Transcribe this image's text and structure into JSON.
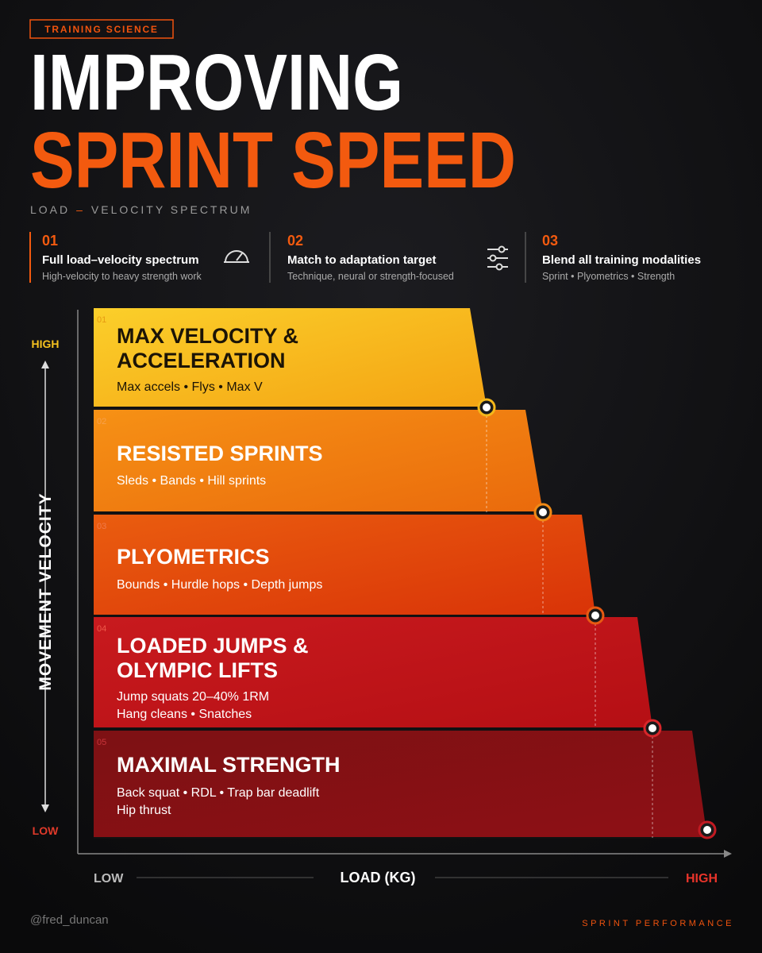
{
  "header": {
    "tag": "TRAINING SCIENCE",
    "title_line1": "IMPROVING",
    "title_line2": "SPRINT SPEED",
    "subtitle_left": "LOAD",
    "subtitle_dash": "–",
    "subtitle_right": "VELOCITY SPECTRUM"
  },
  "pillars": [
    {
      "number": "01",
      "title": "Full load–velocity spectrum",
      "text": "High-velocity to heavy strength work"
    },
    {
      "number": "02",
      "title": "Match to adaptation target",
      "text": "Technique, neural or strength-focused"
    },
    {
      "number": "03",
      "title": "Blend all training modalities",
      "text": "Sprint • Plyometrics • Strength"
    }
  ],
  "y_axis": {
    "label": "MOVEMENT VELOCITY",
    "high": "HIGH",
    "low": "LOW"
  },
  "x_axis": {
    "label": "LOAD (KG)",
    "low": "LOW",
    "high": "HIGH"
  },
  "tiers": [
    {
      "number": "01",
      "title_lines": [
        "MAX VELOCITY &",
        "ACCELERATION"
      ],
      "detail_lines": [
        "Max accels • Flys • Max V"
      ]
    },
    {
      "number": "02",
      "title_lines": [
        "RESISTED SPRINTS"
      ],
      "detail_lines": [
        "Sleds • Bands • Hill sprints"
      ]
    },
    {
      "number": "03",
      "title_lines": [
        "PLYOMETRICS"
      ],
      "detail_lines": [
        "Bounds • Hurdle hops • Depth jumps"
      ]
    },
    {
      "number": "04",
      "title_lines": [
        "LOADED JUMPS &",
        "OLYMPIC LIFTS"
      ],
      "detail_lines": [
        "Jump squats 20–40% 1RM",
        "Hang cleans • Snatches"
      ]
    },
    {
      "number": "05",
      "title_lines": [
        "MAXIMAL STRENGTH"
      ],
      "detail_lines": [
        "Back squat • RDL • Trap bar deadlift",
        "Hip thrust"
      ]
    }
  ],
  "footer": {
    "handle": "@fred_duncan",
    "brand": "SPRINT PERFORMANCE"
  }
}
